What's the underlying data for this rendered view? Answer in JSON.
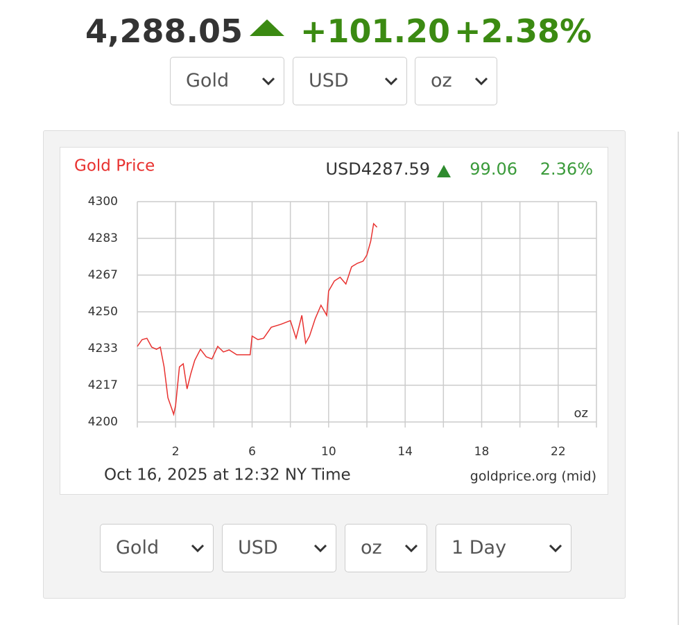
{
  "header": {
    "price": "4,288.05",
    "change": "+101.20",
    "percent": "+2.38%"
  },
  "top_selects": [
    "Gold",
    "USD",
    "oz"
  ],
  "chart_data": {
    "type": "line",
    "title": "Gold Price",
    "current": "USD4287.59",
    "change": "99.06",
    "percent": "2.36%",
    "unit": "oz",
    "footer": "Oct 16, 2025 at 12:32 NY Time",
    "source": "goldprice.org (mid)",
    "color": "#e8312f",
    "x": [
      0,
      0.25,
      0.5,
      0.75,
      1.0,
      1.2,
      1.4,
      1.6,
      1.8,
      1.9,
      2.0,
      2.2,
      2.4,
      2.6,
      2.8,
      3.0,
      3.3,
      3.6,
      3.9,
      4.2,
      4.5,
      4.8,
      5.2,
      5.6,
      5.9,
      6.0,
      6.3,
      6.6,
      7.0,
      7.5,
      8.0,
      8.3,
      8.6,
      8.8,
      9.0,
      9.3,
      9.6,
      9.9,
      10.0,
      10.3,
      10.6,
      10.9,
      11.2,
      11.5,
      11.8,
      12.0,
      12.2,
      12.35,
      12.53
    ],
    "values": [
      4234.3,
      4237.4,
      4238,
      4234,
      4233,
      4234,
      4225,
      4211,
      4206,
      4203.5,
      4207.5,
      4225,
      4226.4,
      4215,
      4222,
      4228,
      4233,
      4229.6,
      4228.6,
      4234.3,
      4231.8,
      4232.7,
      4230.5,
      4230.5,
      4230.5,
      4239,
      4237.4,
      4238,
      4243,
      4244.3,
      4246,
      4238,
      4248.4,
      4235.8,
      4239,
      4246.9,
      4253,
      4248.4,
      4259.4,
      4264,
      4265.7,
      4262.6,
      4270.4,
      4272,
      4273,
      4275.8,
      4282,
      4290,
      4288.4
    ],
    "xlim": [
      0,
      24
    ],
    "xticks": [
      2,
      6,
      10,
      14,
      18,
      22
    ],
    "xgrid": [
      0,
      2,
      4,
      6,
      8,
      10,
      12,
      14,
      16,
      18,
      20,
      22,
      24
    ],
    "ylim": [
      4200,
      4300
    ],
    "yticks": [
      4300,
      {
        "value": 4283.33,
        "label": "4283"
      },
      {
        "value": 4266.67,
        "label": "4267"
      },
      4250,
      {
        "value": 4233.33,
        "label": "4233"
      },
      {
        "value": 4216.67,
        "label": "4217"
      },
      4200
    ],
    "grid": true
  },
  "bottom_selects": [
    "Gold",
    "USD",
    "oz",
    "1 Day"
  ]
}
